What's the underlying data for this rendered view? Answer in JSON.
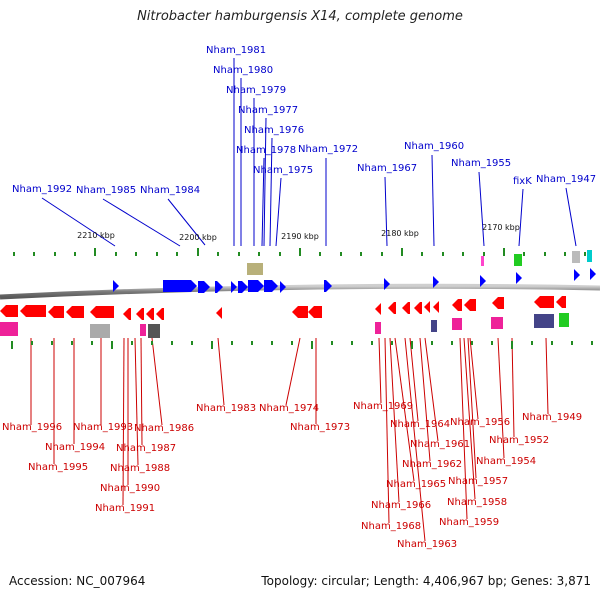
{
  "title": "Nitrobacter hamburgensis X14, complete genome",
  "accession": "Accession: NC_007964",
  "summary": "Topology: circular; Length: 4,406,967 bp; Genes: 3,871",
  "colors": {
    "forward_gene": "#0000ff",
    "reverse_gene": "#ff0000",
    "forward_label": "#0000cc",
    "reverse_label": "#cc0000",
    "backbone": "#888888",
    "tick_mark": "#228b22"
  },
  "scale_labels": [
    "2210 kbp",
    "2200 kbp",
    "2190 kbp",
    "2180 kbp",
    "2170 kbp"
  ],
  "forward_genes": [
    "Nham_1992",
    "Nham_1985",
    "Nham_1984",
    "Nham_1981",
    "Nham_1980",
    "Nham_1979",
    "Nham_1977",
    "Nham_1976",
    "Nham_1978",
    "Nham_1975",
    "Nham_1972",
    "Nham_1967",
    "Nham_1960",
    "Nham_1955",
    "fixK",
    "Nham_1947"
  ],
  "reverse_genes": [
    "Nham_1996",
    "Nham_1995",
    "Nham_1994",
    "Nham_1993",
    "Nham_1991",
    "Nham_1990",
    "Nham_1988",
    "Nham_1987",
    "Nham_1986",
    "Nham_1983",
    "Nham_1974",
    "Nham_1973",
    "Nham_1969",
    "Nham_1968",
    "Nham_1966",
    "Nham_1965",
    "Nham_1964",
    "Nham_1963",
    "Nham_1962",
    "Nham_1961",
    "Nham_1959",
    "Nham_1958",
    "Nham_1957",
    "Nham_1956",
    "Nham_1954",
    "Nham_1952",
    "Nham_1949"
  ]
}
